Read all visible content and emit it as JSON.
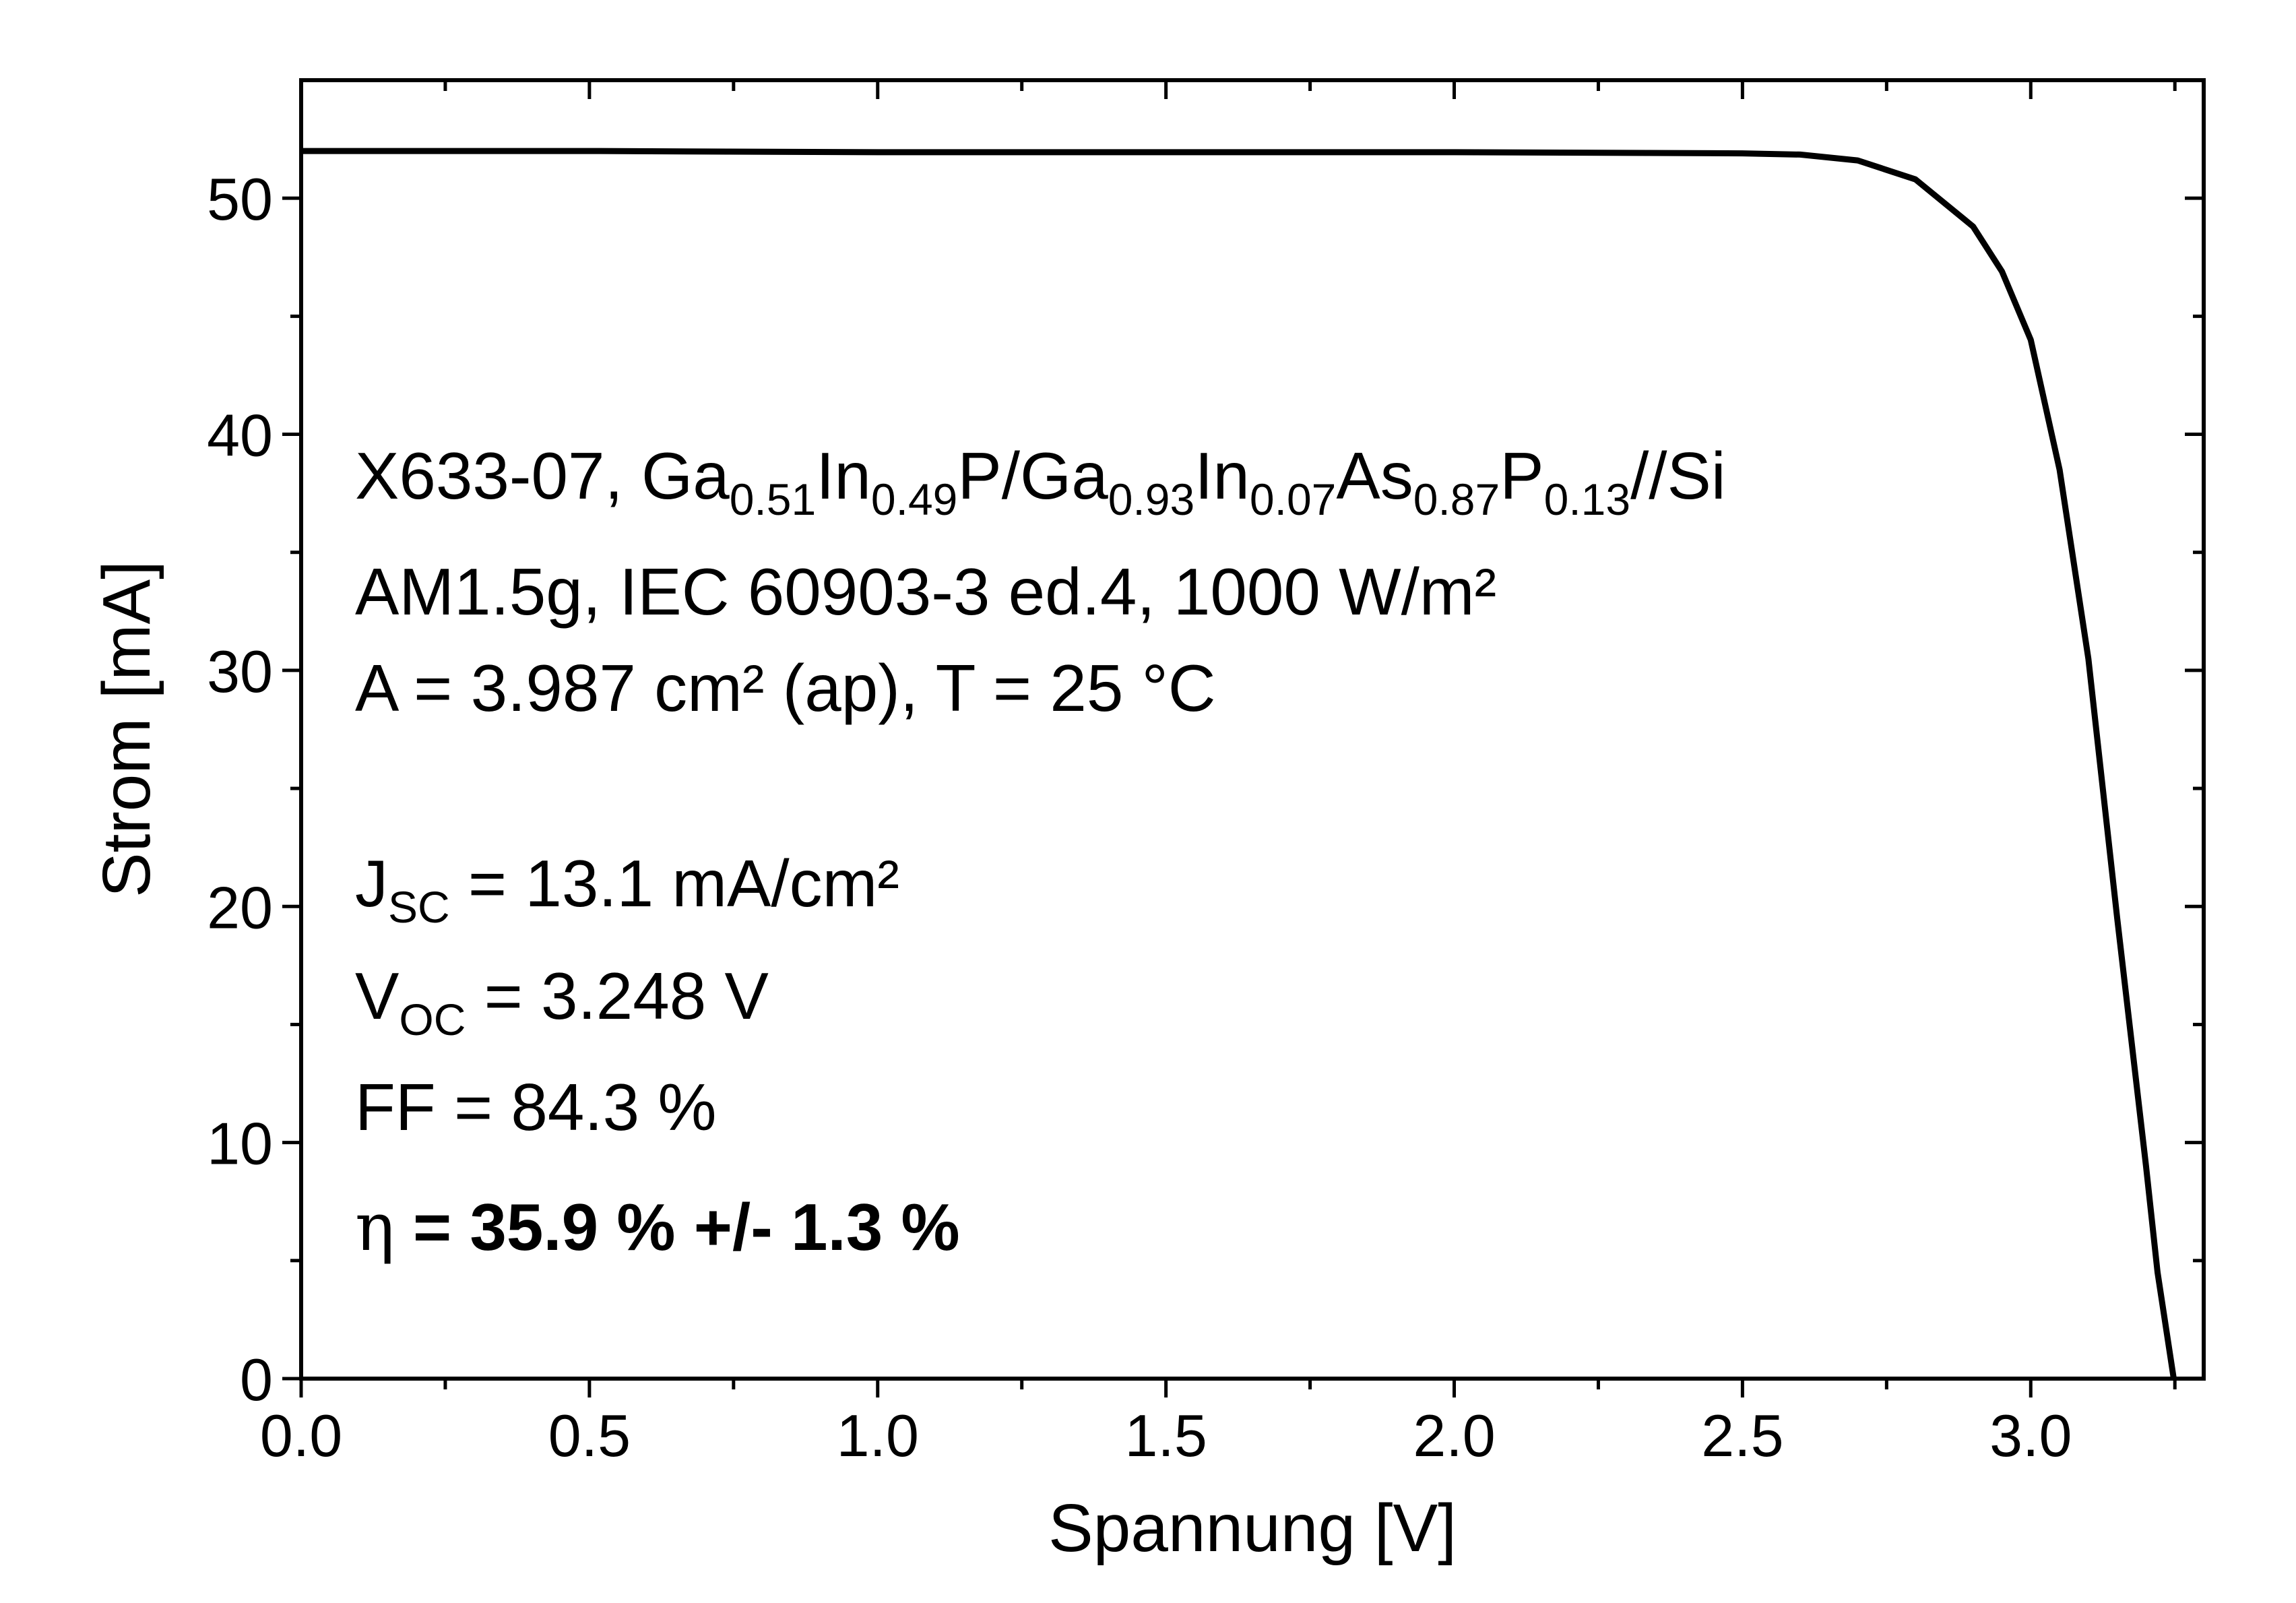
{
  "chart_data": {
    "type": "line",
    "xlabel": "Spannung [V]",
    "ylabel": "Strom [mA]",
    "xlim": [
      0,
      3.3
    ],
    "ylim": [
      0,
      55
    ],
    "x_ticks": [
      "0.0",
      "0.5",
      "1.0",
      "1.5",
      "2.0",
      "2.5",
      "3.0"
    ],
    "y_ticks": [
      "0",
      "10",
      "20",
      "30",
      "40",
      "50"
    ],
    "grid": false,
    "series": [
      {
        "x": [
          0.0,
          0.5,
          1.0,
          1.5,
          2.0,
          2.5,
          2.6,
          2.7,
          2.8,
          2.9,
          2.95,
          3.0,
          3.05,
          3.1,
          3.15,
          3.2,
          3.22,
          3.248
        ],
        "y": [
          52.0,
          52.0,
          51.95,
          51.95,
          51.95,
          51.9,
          51.85,
          51.6,
          50.8,
          48.8,
          46.9,
          44.0,
          38.5,
          30.5,
          19.5,
          9.0,
          4.5,
          0.0
        ]
      }
    ],
    "annotations": {
      "line1": {
        "prefix": "X633-07,  ",
        "parts": [
          {
            "base": "Ga",
            "sub": "0.51"
          },
          {
            "base": "In",
            "sub": "0.49"
          },
          {
            "base": "P/Ga",
            "sub": "0.93"
          },
          {
            "base": "In",
            "sub": "0.07"
          },
          {
            "base": "As",
            "sub": "0.87"
          },
          {
            "base": "P",
            "sub": "0.13"
          }
        ],
        "suffix": "//Si"
      },
      "line2": "AM1.5g, IEC 60903-3 ed.4, 1000 W/m²",
      "line3": "A = 3.987 cm² (ap), T = 25 °C",
      "jsc": {
        "base": "J",
        "sub": "SC",
        "rest": " = 13.1 mA/cm²"
      },
      "voc": {
        "base": "V",
        "sub": "OC",
        "rest": " = 3.248 V"
      },
      "ff": "FF = 84.3 %",
      "eta": {
        "symbol": "η",
        "rest": " = 35.9 % +/- 1.3 %"
      }
    }
  }
}
